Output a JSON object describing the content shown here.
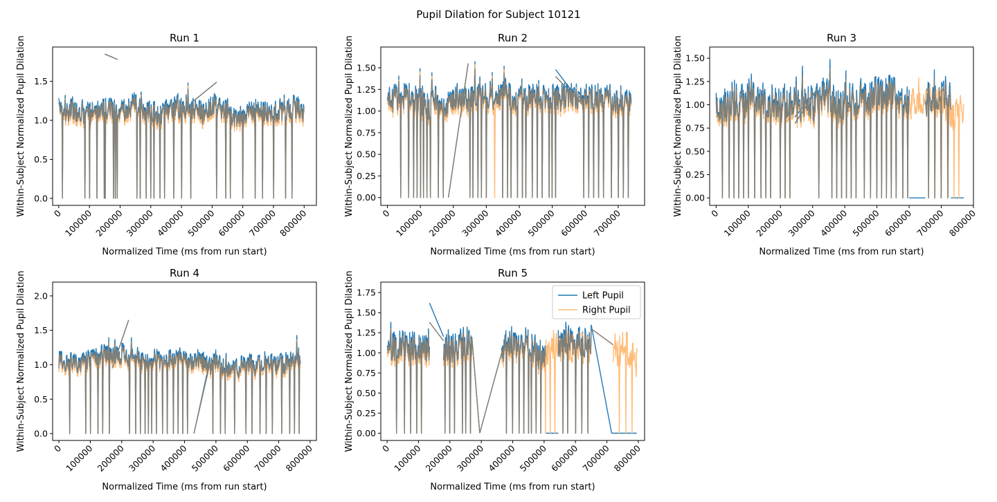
{
  "figure": {
    "title": "Pupil Dilation for Subject 10121"
  },
  "colors": {
    "left_pupil": "#1f77b4",
    "right_pupil": "#ffbb78",
    "overlap": "#7f7f78"
  },
  "chart_data": [
    {
      "type": "line",
      "title": "Run 1",
      "xlabel": "Normalized Time (ms from run start)",
      "ylabel": "Within-Subject Normalized Pupil Dilation",
      "xlim": [
        -20000,
        840000
      ],
      "ylim": [
        -0.09,
        1.94
      ],
      "xticks": [
        "0",
        "100000",
        "200000",
        "300000",
        "400000",
        "500000",
        "600000",
        "700000",
        "800000"
      ],
      "yticks": [
        "0.0",
        "0.5",
        "1.0",
        "1.5"
      ],
      "grid": false,
      "series": [
        {
          "name": "Left Pupil",
          "mean": 1.14,
          "amp": 0.14,
          "dropouts": [
            12000,
            85000,
            100000,
            125000,
            148000,
            152000,
            178000,
            185000,
            190000,
            255000,
            265000,
            285000,
            300000,
            310000,
            330000,
            345000,
            375000,
            400000,
            430000,
            515000,
            545000,
            560000,
            600000,
            640000,
            665000,
            700000,
            740000,
            760000
          ],
          "gaps": [
            [
              150000,
              192000,
              1.85,
              1.78
            ],
            [
              440000,
              515000,
              1.25,
              1.49
            ]
          ],
          "segments": [
            [
              0,
              800000
            ]
          ]
        },
        {
          "name": "Right Pupil",
          "mean": 1.08,
          "amp": 0.15,
          "dropouts": [
            12000,
            85000,
            100000,
            125000,
            148000,
            152000,
            178000,
            185000,
            190000,
            255000,
            265000,
            285000,
            300000,
            310000,
            330000,
            345000,
            375000,
            400000,
            430000,
            515000,
            545000,
            560000,
            600000,
            640000,
            665000,
            700000,
            740000,
            760000
          ],
          "gaps": [
            [
              150000,
              192000,
              1.85,
              1.78
            ],
            [
              440000,
              515000,
              1.25,
              1.49
            ]
          ],
          "segments": [
            [
              0,
              800000
            ]
          ]
        }
      ]
    },
    {
      "type": "line",
      "title": "Run 2",
      "xlabel": "Normalized Time (ms from run start)",
      "ylabel": "Within-Subject Normalized Pupil Dilation",
      "xlim": [
        -20000,
        780000
      ],
      "ylim": [
        -0.09,
        1.74
      ],
      "xticks": [
        "0",
        "100000",
        "200000",
        "300000",
        "400000",
        "500000",
        "600000",
        "700000"
      ],
      "yticks": [
        "0.00",
        "0.25",
        "0.50",
        "0.75",
        "1.00",
        "1.25",
        "1.50"
      ],
      "grid": false,
      "series": [
        {
          "name": "Left Pupil",
          "mean": 1.18,
          "amp": 0.15,
          "dropouts": [
            40000,
            65000,
            80000,
            90000,
            100000,
            110000,
            120000,
            130000,
            155000,
            170000,
            250000,
            260000,
            275000,
            285000,
            300000,
            350000,
            365000,
            375000,
            395000,
            410000,
            420000,
            440000,
            455000,
            470000,
            490000,
            500000,
            510000,
            595000,
            610000,
            625000,
            640000,
            655000,
            680000,
            700000,
            715000,
            730000
          ],
          "gaps": [
            [
              185000,
              245000,
              0.0,
              1.55
            ],
            [
              510000,
              590000,
              1.48,
              1.08
            ]
          ],
          "segments": [
            [
              0,
              740000
            ]
          ]
        },
        {
          "name": "Right Pupil",
          "mean": 1.12,
          "amp": 0.16,
          "dropouts": [
            40000,
            65000,
            80000,
            90000,
            100000,
            110000,
            120000,
            130000,
            155000,
            170000,
            250000,
            260000,
            275000,
            285000,
            300000,
            325000,
            350000,
            365000,
            375000,
            395000,
            410000,
            420000,
            440000,
            455000,
            470000,
            490000,
            500000,
            510000,
            595000,
            610000,
            625000,
            640000,
            655000,
            680000,
            700000,
            715000,
            730000
          ],
          "gaps": [
            [
              185000,
              245000,
              0.0,
              1.55
            ],
            [
              510000,
              590000,
              1.4,
              1.08
            ]
          ],
          "segments": [
            [
              0,
              740000
            ]
          ]
        }
      ]
    },
    {
      "type": "line",
      "title": "Run 3",
      "xlabel": "Normalized Time (ms from run start)",
      "ylabel": "Within-Subject Normalized Pupil Dilation",
      "xlim": [
        -20000,
        800000
      ],
      "ylim": [
        -0.08,
        1.62
      ],
      "xticks": [
        "0",
        "100000",
        "200000",
        "300000",
        "400000",
        "500000",
        "600000",
        "700000",
        "800000"
      ],
      "yticks": [
        "0.00",
        "0.25",
        "0.50",
        "0.75",
        "1.00",
        "1.25",
        "1.50"
      ],
      "grid": false,
      "series": [
        {
          "name": "Left Pupil",
          "mean": 1.05,
          "amp": 0.18,
          "dropouts": [
            20000,
            40000,
            55000,
            70000,
            85000,
            100000,
            120000,
            140000,
            155000,
            170000,
            200000,
            215000,
            230000,
            320000,
            360000,
            375000,
            390000,
            405000,
            420000,
            435000,
            460000,
            480000,
            500000,
            515000,
            530000,
            545000,
            560000,
            580000,
            595000,
            660000,
            680000,
            700000,
            720000
          ],
          "gaps": [
            [
              245000,
              315000,
              0.87,
              1.17
            ],
            [
              600000,
              650000,
              0.0,
              0.0
            ],
            [
              730000,
              770000,
              0.0,
              0.0
            ]
          ],
          "segments": [
            [
              0,
              600000
            ],
            [
              650000,
              730000
            ]
          ]
        },
        {
          "name": "Right Pupil",
          "mean": 0.97,
          "amp": 0.17,
          "dropouts": [
            20000,
            40000,
            55000,
            70000,
            85000,
            100000,
            120000,
            140000,
            155000,
            170000,
            200000,
            215000,
            230000,
            320000,
            360000,
            375000,
            390000,
            405000,
            420000,
            435000,
            460000,
            480000,
            500000,
            515000,
            530000,
            545000,
            560000,
            580000,
            595000,
            660000,
            680000,
            700000,
            720000,
            740000,
            755000
          ],
          "gaps": [
            [
              245000,
              315000,
              0.8,
              1.17
            ]
          ],
          "segments": [
            [
              0,
              770000
            ]
          ]
        }
      ]
    },
    {
      "type": "line",
      "title": "Run 4",
      "xlabel": "Normalized Time (ms from run start)",
      "ylabel": "Within-Subject Normalized Pupil Dilation",
      "xlim": [
        -20000,
        820000
      ],
      "ylim": [
        -0.1,
        2.2
      ],
      "xticks": [
        "0",
        "100000",
        "200000",
        "300000",
        "400000",
        "500000",
        "600000",
        "700000",
        "800000"
      ],
      "yticks": [
        "0.0",
        "0.5",
        "1.0",
        "1.5",
        "2.0"
      ],
      "grid": false,
      "series": [
        {
          "name": "Left Pupil",
          "mean": 1.08,
          "amp": 0.14,
          "dropouts": [
            35000,
            85000,
            100000,
            125000,
            140000,
            160000,
            225000,
            245000,
            260000,
            275000,
            285000,
            295000,
            310000,
            330000,
            345000,
            365000,
            380000,
            395000,
            410000,
            490000,
            515000,
            530000,
            560000,
            595000,
            615000,
            640000,
            660000,
            680000,
            710000,
            735000,
            750000,
            765000
          ],
          "gaps": [
            [
              170000,
              222000,
              0.95,
              1.65
            ],
            [
              430000,
              480000,
              0.0,
              1.05
            ]
          ],
          "segments": [
            [
              0,
              770000
            ]
          ]
        },
        {
          "name": "Right Pupil",
          "mean": 1.01,
          "amp": 0.14,
          "dropouts": [
            35000,
            85000,
            100000,
            125000,
            140000,
            160000,
            225000,
            245000,
            260000,
            275000,
            285000,
            295000,
            310000,
            330000,
            345000,
            365000,
            380000,
            395000,
            410000,
            490000,
            515000,
            530000,
            560000,
            595000,
            615000,
            640000,
            660000,
            680000,
            710000,
            735000,
            750000,
            765000
          ],
          "gaps": [
            [
              170000,
              222000,
              0.95,
              1.65
            ],
            [
              430000,
              480000,
              0.0,
              1.0
            ]
          ],
          "segments": [
            [
              0,
              770000
            ]
          ]
        }
      ]
    },
    {
      "type": "line",
      "title": "Run 5",
      "xlabel": "Normalized Time (ms from run start)",
      "ylabel": "Within-Subject Normalized Pupil Dilation",
      "xlim": [
        -20000,
        820000
      ],
      "ylim": [
        -0.09,
        1.88
      ],
      "xticks": [
        "0",
        "100000",
        "200000",
        "300000",
        "400000",
        "500000",
        "600000",
        "700000",
        "800000"
      ],
      "yticks": [
        "0.00",
        "0.25",
        "0.50",
        "0.75",
        "1.00",
        "1.25",
        "1.50",
        "1.75"
      ],
      "grid": false,
      "legend": {
        "position": "upper right",
        "entries": [
          "Left Pupil",
          "Right Pupil"
        ]
      },
      "series": [
        {
          "name": "Left Pupil",
          "mean": 1.1,
          "amp": 0.2,
          "dropouts": [
            30000,
            55000,
            75000,
            95000,
            110000,
            185000,
            200000,
            215000,
            240000,
            250000,
            265000,
            380000,
            400000,
            420000,
            435000,
            450000,
            460000,
            475000,
            490000,
            560000,
            575000,
            600000,
            620000,
            640000,
            760000,
            780000
          ],
          "gaps": [
            [
              135000,
              180000,
              1.62,
              1.2
            ],
            [
              270000,
              295000,
              1.2,
              0.0
            ],
            [
              295000,
              365000,
              0.0,
              1.0
            ],
            [
              505000,
              545000,
              0.0,
              0.0
            ],
            [
              650000,
              715000,
              1.35,
              0.0
            ],
            [
              715000,
              795000,
              0.0,
              0.0
            ]
          ],
          "segments": [
            [
              0,
              135000
            ],
            [
              180000,
              270000
            ],
            [
              365000,
              505000
            ],
            [
              545000,
              650000
            ]
          ]
        },
        {
          "name": "Right Pupil",
          "mean": 1.02,
          "amp": 0.2,
          "dropouts": [
            30000,
            55000,
            75000,
            95000,
            110000,
            185000,
            200000,
            215000,
            240000,
            250000,
            265000,
            380000,
            400000,
            420000,
            435000,
            450000,
            460000,
            475000,
            490000,
            505000,
            520000,
            535000,
            560000,
            575000,
            600000,
            620000,
            640000,
            740000,
            760000,
            780000
          ],
          "gaps": [
            [
              135000,
              180000,
              1.38,
              1.15
            ],
            [
              270000,
              295000,
              1.2,
              0.0
            ],
            [
              295000,
              365000,
              0.0,
              1.0
            ],
            [
              650000,
              720000,
              1.3,
              1.1
            ]
          ],
          "segments": [
            [
              0,
              135000
            ],
            [
              180000,
              270000
            ],
            [
              365000,
              650000
            ],
            [
              720000,
              795000
            ]
          ]
        }
      ]
    }
  ]
}
